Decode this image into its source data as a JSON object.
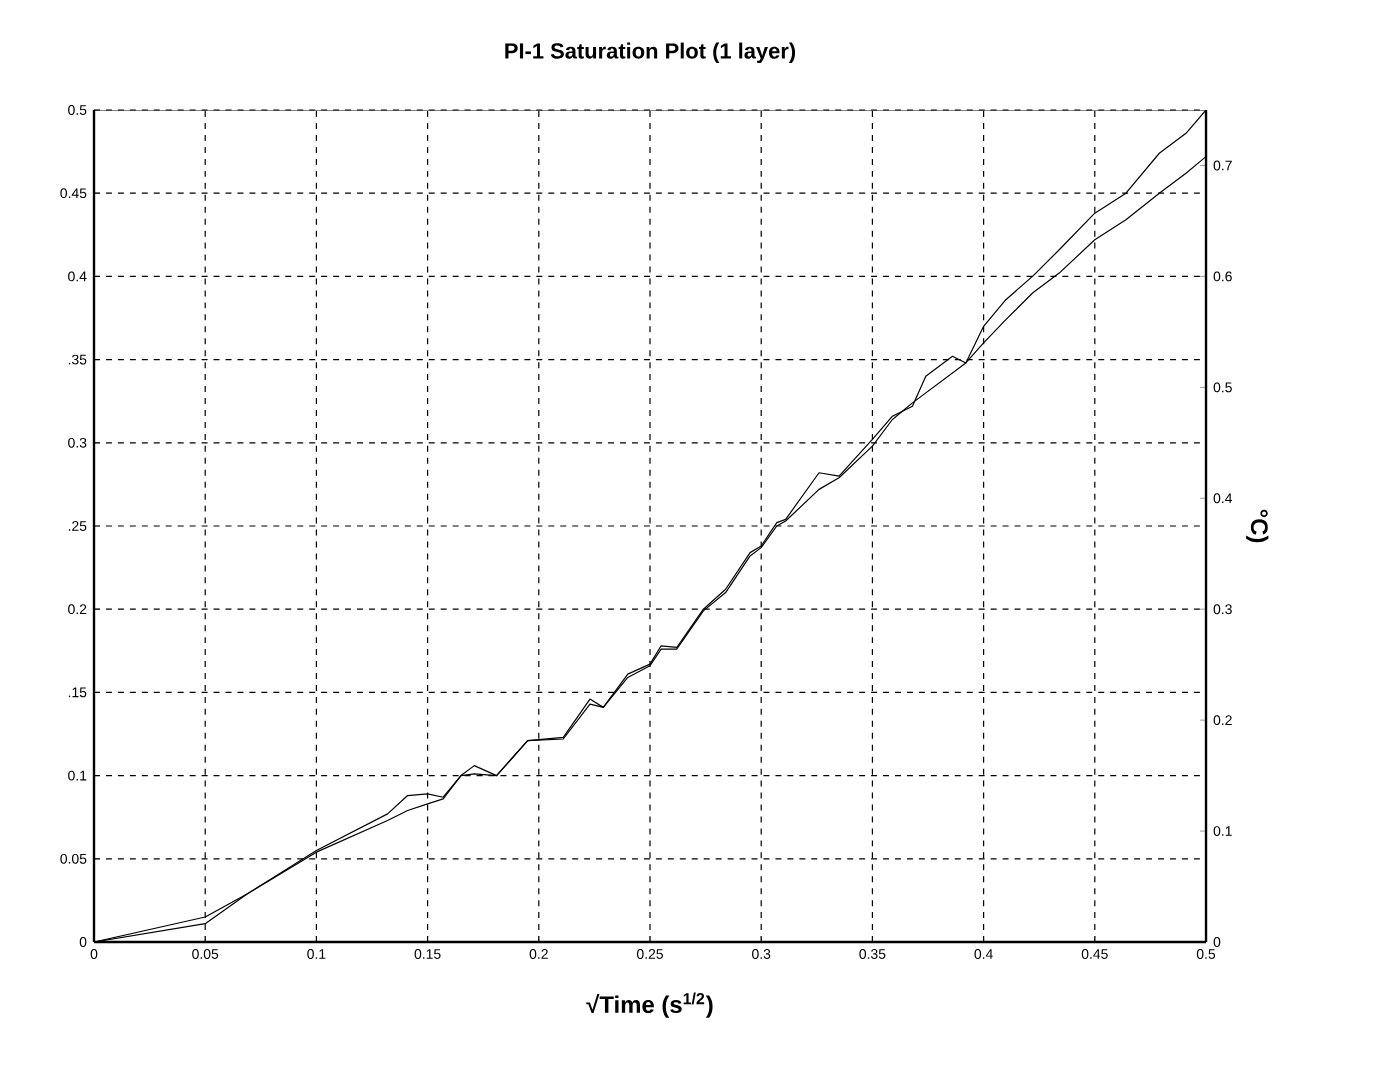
{
  "chart_data": {
    "type": "line",
    "title": "PI-1 Saturation Plot (1 layer)",
    "xlabel": "√Time (s$^{1/2}$)",
    "y2label": "°C)",
    "xlim": [
      0,
      0.5
    ],
    "ylim": [
      0,
      0.5
    ],
    "y2lim": [
      0,
      0.75
    ],
    "xticks": [
      0,
      0.05,
      0.1,
      0.15,
      0.2,
      0.25,
      0.3,
      0.35,
      0.4,
      0.45,
      0.5
    ],
    "yticks": [
      0,
      0.05,
      0.1,
      {
        "value": 0.15,
        "label": ".15"
      },
      0.2,
      {
        "value": 0.25,
        "label": ".25"
      },
      0.3,
      {
        "value": 0.35,
        "label": ".35"
      },
      0.4,
      0.45,
      0.5
    ],
    "y2ticks": [
      0,
      0.1,
      0.2,
      0.3,
      0.4,
      0.5,
      0.6,
      0.7
    ],
    "grid": true,
    "line_style": "solid",
    "x": [
      0,
      0.05,
      0.069,
      0.1,
      0.132,
      0.141,
      0.15,
      0.157,
      0.165,
      0.171,
      0.181,
      0.195,
      0.211,
      0.223,
      0.229,
      0.24,
      0.25,
      0.255,
      0.262,
      0.274,
      0.284,
      0.295,
      0.3,
      0.307,
      0.311,
      0.326,
      0.335,
      0.35,
      0.359,
      0.368,
      0.374,
      0.386,
      0.392,
      0.4,
      0.41,
      0.422,
      0.434,
      0.45,
      0.464,
      0.479,
      0.491,
      0.5
    ],
    "series": [
      {
        "color": "#000000",
        "values": [
          0,
          0.015,
          0.029,
          0.055,
          0.077,
          0.088,
          0.089,
          0.087,
          0.1,
          0.106,
          0.1,
          0.121,
          0.123,
          0.146,
          0.141,
          0.161,
          0.167,
          0.178,
          0.177,
          0.2,
          0.212,
          0.234,
          0.238,
          0.252,
          0.254,
          0.282,
          0.28,
          0.302,
          0.316,
          0.322,
          0.34,
          0.352,
          0.348,
          0.37,
          0.386,
          0.4,
          0.416,
          0.438,
          0.45,
          0.474,
          0.486,
          0.5
        ]
      },
      {
        "color": "#000000",
        "values": [
          0,
          0.011,
          0.029,
          0.054,
          0.073,
          0.079,
          0.083,
          0.086,
          0.1,
          0.101,
          0.1,
          0.121,
          0.122,
          0.143,
          0.141,
          0.159,
          0.166,
          0.176,
          0.176,
          0.199,
          0.21,
          0.232,
          0.237,
          0.25,
          0.253,
          0.272,
          0.279,
          0.298,
          0.314,
          0.324,
          0.33,
          0.342,
          0.348,
          0.36,
          0.374,
          0.39,
          0.402,
          0.422,
          0.434,
          0.45,
          0.462,
          0.472
        ]
      }
    ]
  }
}
